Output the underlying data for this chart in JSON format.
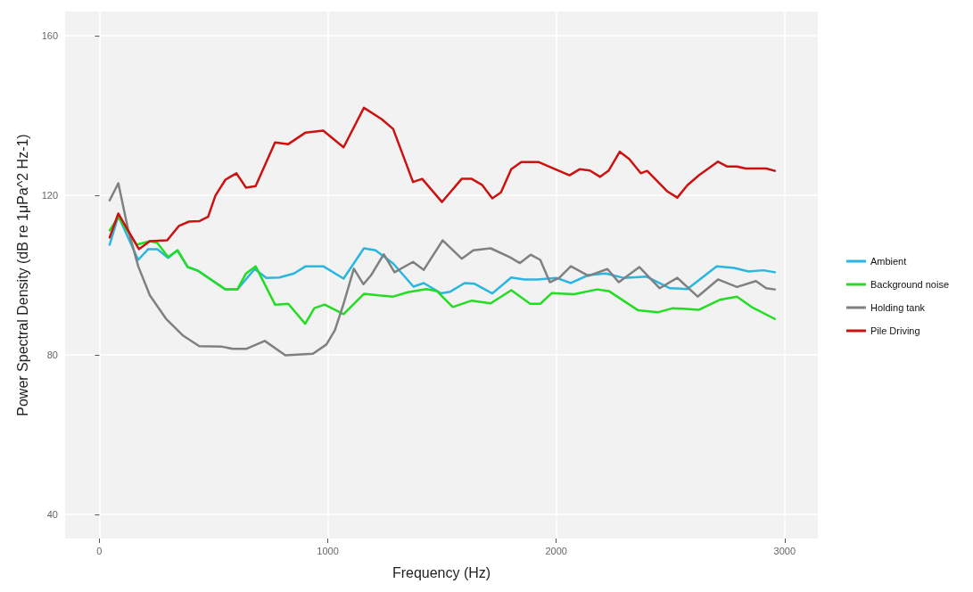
{
  "chart_data": {
    "type": "line",
    "xlabel": "Frequency (Hz)",
    "ylabel": "Power Spectral Density (dB re 1μPa^2 Hz-1)",
    "xlim": [
      -150,
      3145
    ],
    "ylim": [
      34,
      166
    ],
    "xticks": [
      0,
      1000,
      2000,
      3000
    ],
    "yticks": [
      40,
      80,
      120,
      160
    ],
    "grid": true,
    "legend": "right",
    "marker": "none",
    "line_style": "solid",
    "series": [
      {
        "name": "Ambient",
        "color": "#29b6e0",
        "x": [
          45,
          83,
          170,
          214,
          253,
          301,
          342,
          387,
          431,
          495,
          552,
          604,
          680,
          731,
          788,
          852,
          903,
          980,
          1069,
          1158,
          1209,
          1286,
          1375,
          1420,
          1496,
          1535,
          1599,
          1643,
          1720,
          1803,
          1860,
          1917,
          2000,
          2064,
          2141,
          2217,
          2294,
          2396,
          2498,
          2574,
          2702,
          2778,
          2842,
          2906,
          2957
        ],
        "values": [
          107.6,
          114.8,
          103.8,
          106.5,
          106.5,
          104.3,
          106.2,
          102.0,
          101.1,
          98.6,
          96.4,
          96.4,
          101.5,
          99.3,
          99.4,
          100.4,
          102.2,
          102.2,
          99.1,
          106.7,
          106.2,
          102.9,
          97.1,
          98.0,
          95.4,
          95.8,
          98.0,
          97.8,
          95.4,
          99.4,
          98.9,
          98.9,
          99.3,
          98.0,
          100.0,
          100.4,
          99.3,
          99.6,
          96.7,
          96.5,
          102.2,
          101.8,
          100.9,
          101.2,
          100.7
        ]
      },
      {
        "name": "Background noise",
        "color": "#22dd22",
        "x": [
          45,
          83,
          163,
          221,
          253,
          301,
          342,
          387,
          431,
          495,
          552,
          604,
          642,
          684,
          769,
          827,
          901,
          941,
          986,
          1069,
          1158,
          1222,
          1286,
          1350,
          1432,
          1477,
          1547,
          1630,
          1713,
          1803,
          1886,
          1930,
          1981,
          2077,
          2179,
          2230,
          2357,
          2447,
          2511,
          2625,
          2715,
          2791,
          2855,
          2957
        ],
        "values": [
          111.2,
          114.5,
          107.6,
          108.5,
          108.1,
          104.5,
          106.2,
          102.0,
          101.1,
          98.6,
          96.4,
          96.4,
          100.4,
          102.2,
          92.6,
          92.8,
          87.8,
          91.7,
          92.6,
          90.2,
          95.3,
          94.9,
          94.6,
          95.7,
          96.5,
          96.0,
          92.0,
          93.6,
          92.9,
          96.2,
          92.8,
          92.8,
          95.5,
          95.2,
          96.4,
          96.0,
          91.2,
          90.7,
          91.7,
          91.3,
          93.8,
          94.6,
          92.0,
          89.0
        ]
      },
      {
        "name": "Holding tank",
        "color": "#808080",
        "x": [
          45,
          83,
          125,
          170,
          221,
          291,
          367,
          437,
          533,
          584,
          642,
          724,
          814,
          935,
          994,
          1031,
          1069,
          1114,
          1156,
          1190,
          1245,
          1292,
          1373,
          1420,
          1503,
          1586,
          1637,
          1713,
          1796,
          1841,
          1888,
          1930,
          1972,
          2013,
          2064,
          2141,
          2224,
          2274,
          2364,
          2453,
          2530,
          2619,
          2708,
          2791,
          2874,
          2919,
          2957
        ],
        "values": [
          118.7,
          123.0,
          111.6,
          102.2,
          94.9,
          89.1,
          84.8,
          82.2,
          82.1,
          81.5,
          81.5,
          83.5,
          79.9,
          80.3,
          82.6,
          86.2,
          92.8,
          101.6,
          97.7,
          100.0,
          105.2,
          100.7,
          103.3,
          101.3,
          108.7,
          104.1,
          106.2,
          106.7,
          104.5,
          103.0,
          105.1,
          103.8,
          98.2,
          99.3,
          102.2,
          99.8,
          101.5,
          98.2,
          102.0,
          96.7,
          99.3,
          94.6,
          98.9,
          97.0,
          98.5,
          96.7,
          96.4
        ]
      },
      {
        "name": "Pile Driving",
        "color": "#cc1111",
        "x": [
          45,
          83,
          173,
          221,
          297,
          348,
          393,
          437,
          476,
          508,
          552,
          600,
          642,
          684,
          769,
          827,
          903,
          980,
          1069,
          1158,
          1235,
          1286,
          1373,
          1413,
          1500,
          1586,
          1630,
          1675,
          1720,
          1758,
          1803,
          1847,
          1924,
          1987,
          2058,
          2102,
          2147,
          2192,
          2230,
          2278,
          2319,
          2370,
          2398,
          2485,
          2530,
          2574,
          2625,
          2708,
          2747,
          2791,
          2829,
          2919,
          2957
        ],
        "values": [
          109.4,
          115.4,
          106.5,
          108.5,
          108.7,
          112.3,
          113.4,
          113.5,
          114.6,
          119.9,
          123.9,
          125.5,
          121.9,
          122.3,
          133.2,
          132.8,
          135.7,
          136.2,
          132.0,
          141.9,
          139.1,
          136.6,
          123.3,
          124.1,
          118.3,
          124.1,
          124.1,
          122.6,
          119.2,
          120.7,
          126.5,
          128.3,
          128.3,
          126.7,
          125.0,
          126.5,
          126.2,
          124.6,
          126.2,
          130.9,
          129.1,
          125.5,
          126.1,
          121.0,
          119.4,
          122.5,
          125.0,
          128.4,
          127.2,
          127.2,
          126.7,
          126.7,
          126.1
        ]
      }
    ]
  }
}
